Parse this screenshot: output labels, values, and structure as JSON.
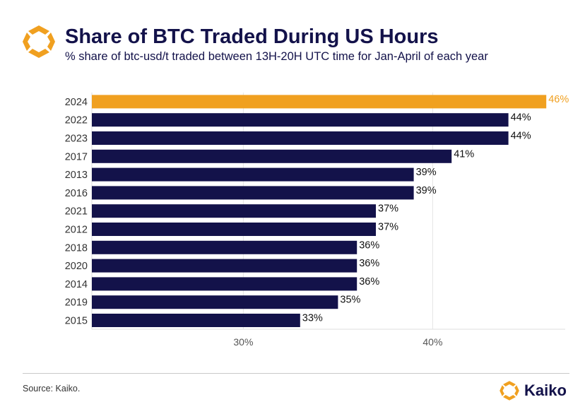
{
  "header": {
    "title": "Share of BTC Traded During US Hours",
    "subtitle": "% share of btc-usd/t traded between 13H-20H UTC time for Jan-April of each year"
  },
  "footer": {
    "source": "Source: Kaiko.",
    "brand": "Kaiko"
  },
  "colors": {
    "highlight": "#f0a020",
    "bar": "#13124a",
    "brand_orange": "#f0a020"
  },
  "chart_data": {
    "type": "bar",
    "orientation": "horizontal",
    "categories": [
      "2024",
      "2022",
      "2023",
      "2017",
      "2013",
      "2016",
      "2021",
      "2012",
      "2018",
      "2020",
      "2014",
      "2019",
      "2015"
    ],
    "values": [
      46,
      44,
      44,
      41,
      39,
      39,
      37,
      37,
      36,
      36,
      36,
      35,
      33
    ],
    "data_labels": [
      "46%",
      "44%",
      "44%",
      "41%",
      "39%",
      "39%",
      "37%",
      "37%",
      "36%",
      "36%",
      "36%",
      "35%",
      "33%"
    ],
    "highlight_category": "2024",
    "x_ticks": [
      30,
      40
    ],
    "x_tick_labels": [
      "30%",
      "40%"
    ],
    "xlim": [
      22,
      47
    ],
    "grid": "vertical gridlines at ticks"
  }
}
